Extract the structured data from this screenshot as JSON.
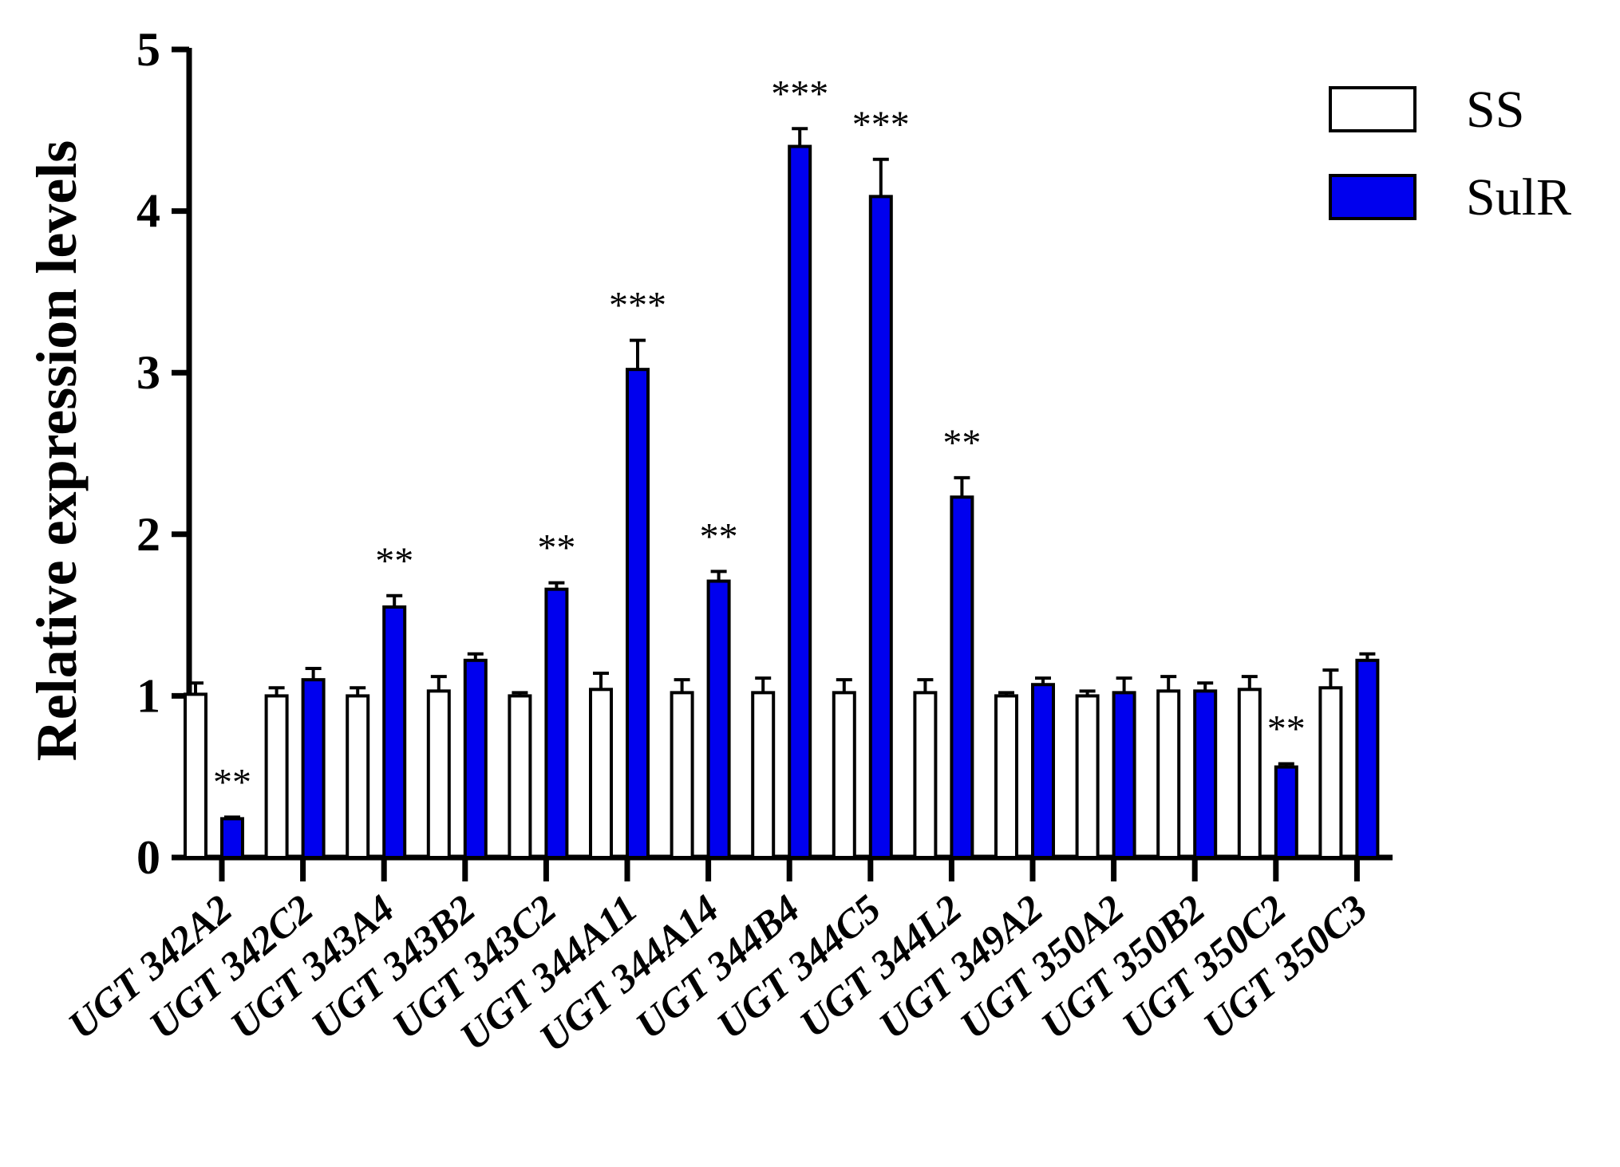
{
  "chart_data": {
    "type": "bar",
    "title": "",
    "xlabel": "",
    "ylabel": "Relative expression levels",
    "ylim": [
      0,
      5
    ],
    "yticks": [
      "0",
      "1",
      "2",
      "3",
      "4",
      "5"
    ],
    "grid": false,
    "legend_position": "top-right",
    "categories": [
      "UGT 342A2",
      "UGT 342C2",
      "UGT 343A4",
      "UGT 343B2",
      "UGT 343C2",
      "UGT 344A11",
      "UGT 344A14",
      "UGT 344B4",
      "UGT 344C5",
      "UGT 344L2",
      "UGT 349A2",
      "UGT 350A2",
      "UGT 350B2",
      "UGT 350C2",
      "UGT 350C3"
    ],
    "series": [
      {
        "name": "SS",
        "color": "#ffffff",
        "values": [
          1.01,
          1.0,
          1.0,
          1.03,
          1.0,
          1.04,
          1.02,
          1.02,
          1.02,
          1.02,
          1.0,
          1.0,
          1.03,
          1.04,
          1.05
        ],
        "errors": [
          0.07,
          0.05,
          0.05,
          0.09,
          0.02,
          0.1,
          0.08,
          0.09,
          0.08,
          0.08,
          0.02,
          0.03,
          0.09,
          0.08,
          0.11
        ]
      },
      {
        "name": "SulR",
        "color": "#0000ee",
        "values": [
          0.24,
          1.1,
          1.55,
          1.22,
          1.66,
          3.02,
          1.71,
          4.4,
          4.09,
          2.23,
          1.07,
          1.02,
          1.03,
          0.56,
          1.22
        ],
        "errors": [
          0.01,
          0.07,
          0.07,
          0.04,
          0.04,
          0.18,
          0.06,
          0.11,
          0.23,
          0.12,
          0.04,
          0.09,
          0.05,
          0.02,
          0.04
        ]
      }
    ],
    "significance": [
      "**",
      "",
      "**",
      "",
      "**",
      "***",
      "**",
      "***",
      "***",
      "**",
      "",
      "",
      "",
      "**",
      ""
    ]
  }
}
